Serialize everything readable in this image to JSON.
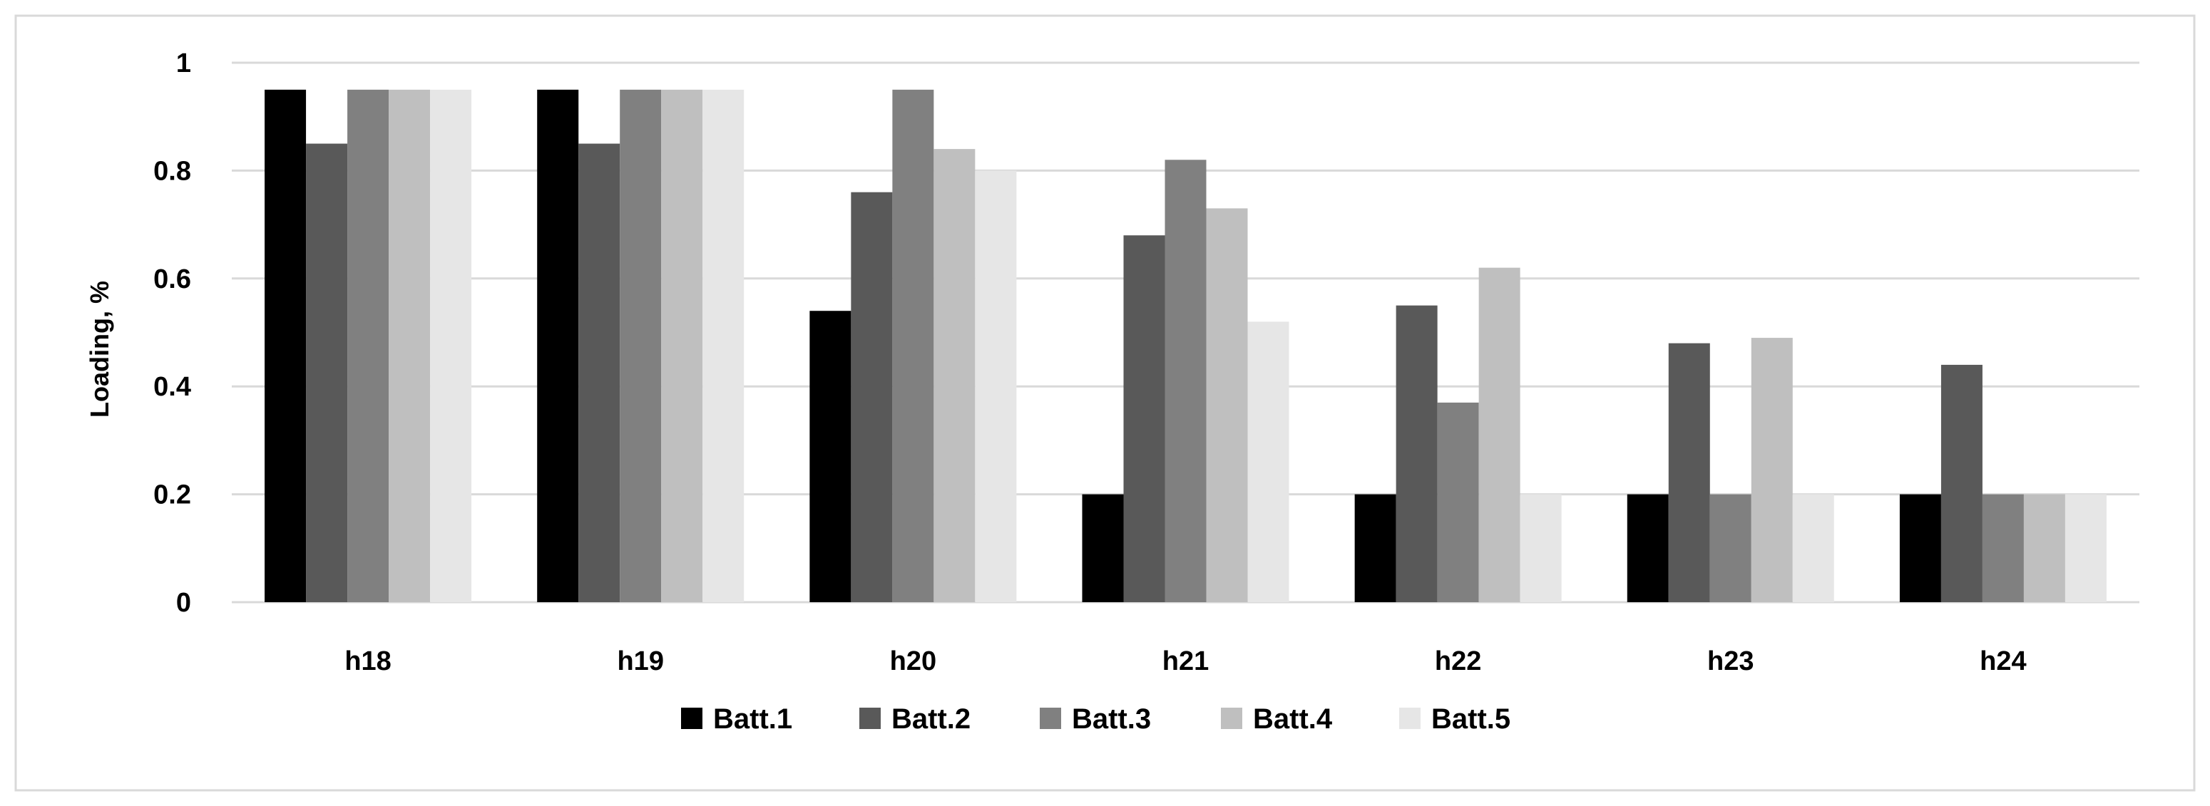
{
  "chart_data": {
    "type": "bar",
    "title": "",
    "xlabel": "",
    "ylabel": "Loading, %",
    "ylim": [
      0,
      1
    ],
    "yticks": [
      "0",
      "0.2",
      "0.4",
      "0.6",
      "0.8",
      "1"
    ],
    "categories": [
      "h18",
      "h19",
      "h20",
      "h21",
      "h22",
      "h23",
      "h24"
    ],
    "grid": "horizontal",
    "legend_position": "bottom",
    "series": [
      {
        "name": "Batt.1",
        "color": "#000000",
        "values": [
          0.95,
          0.95,
          0.54,
          0.2,
          0.2,
          0.2,
          0.2
        ]
      },
      {
        "name": "Batt.2",
        "color": "#595959",
        "values": [
          0.85,
          0.85,
          0.76,
          0.68,
          0.55,
          0.48,
          0.44
        ]
      },
      {
        "name": "Batt.3",
        "color": "#808080",
        "values": [
          0.95,
          0.95,
          0.95,
          0.82,
          0.37,
          0.2,
          0.2
        ]
      },
      {
        "name": "Batt.4",
        "color": "#bfbfbf",
        "values": [
          0.95,
          0.95,
          0.84,
          0.73,
          0.62,
          0.49,
          0.2
        ]
      },
      {
        "name": "Batt.5",
        "color": "#e6e6e6",
        "values": [
          0.95,
          0.95,
          0.8,
          0.52,
          0.2,
          0.2,
          0.2
        ]
      }
    ]
  }
}
